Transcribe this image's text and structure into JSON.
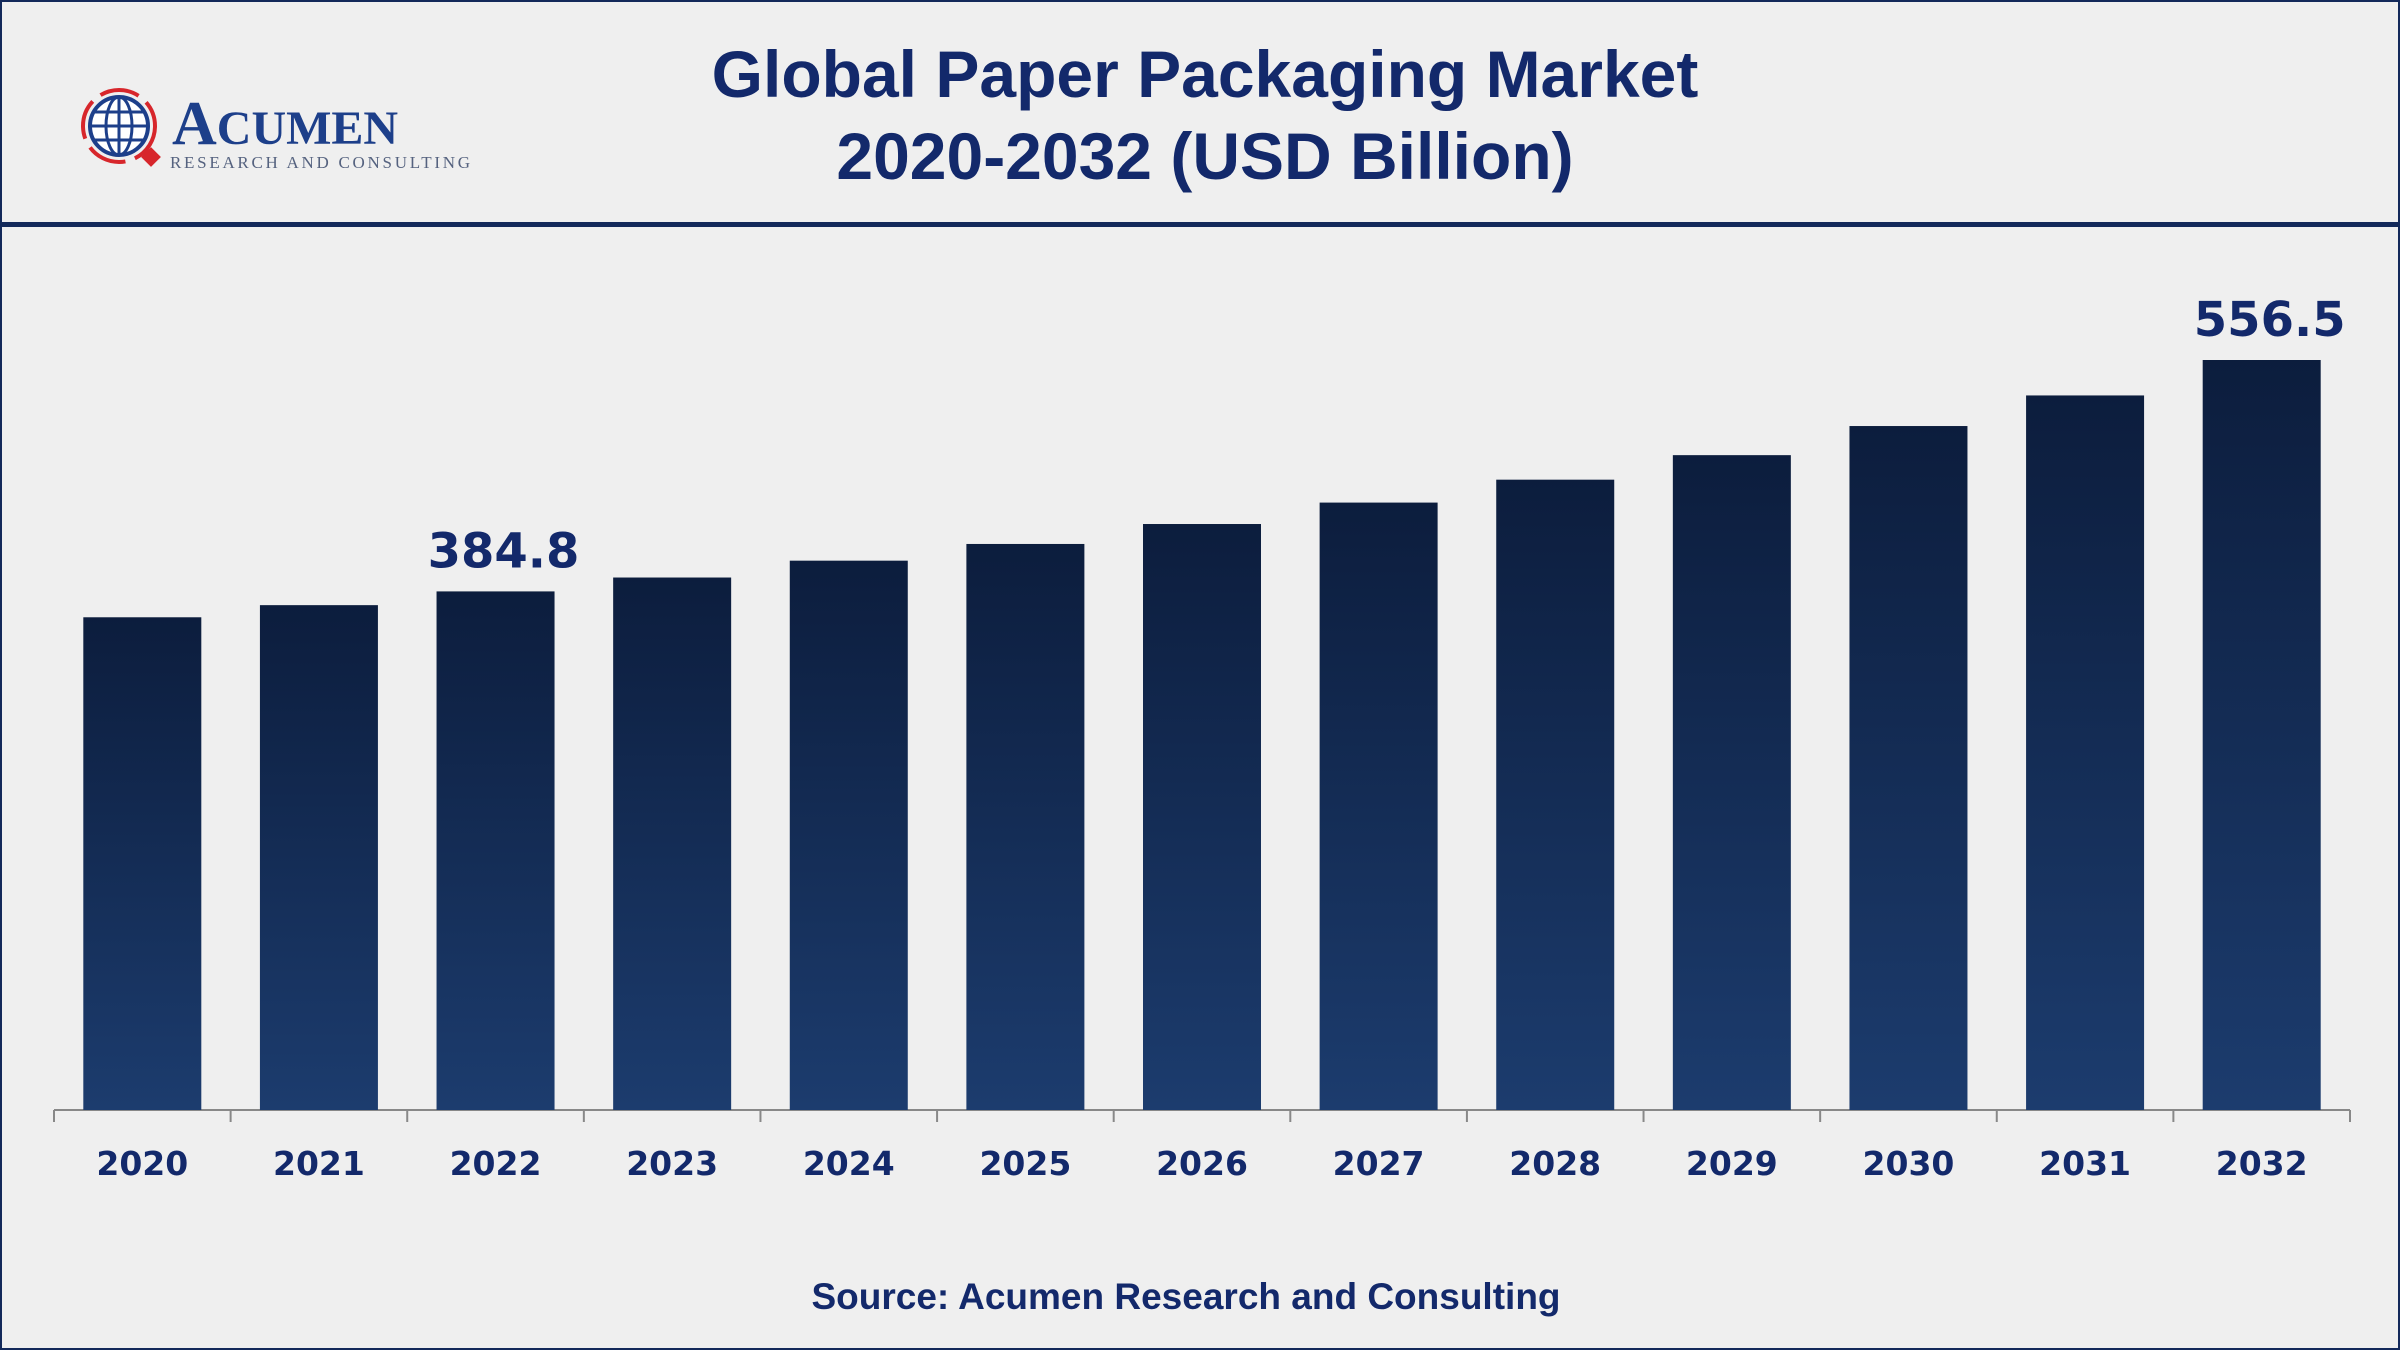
{
  "title_line1": "Global Paper Packaging Market",
  "title_line2": "2020-2032 (USD Billion)",
  "logo": {
    "name": "ACUMEN",
    "tagline": "RESEARCH AND CONSULTING"
  },
  "source": "Source: Acumen Research and Consulting",
  "colors": {
    "bar_top": "#0c1d3d",
    "bar_bottom": "#1c3c6e",
    "text": "#13296b",
    "accent": "#d7262b"
  },
  "chart_data": {
    "type": "bar",
    "title": "Global Paper Packaging Market 2020-2032 (USD Billion)",
    "categories": [
      "2020",
      "2021",
      "2022",
      "2023",
      "2024",
      "2025",
      "2026",
      "2027",
      "2028",
      "2029",
      "2030",
      "2031",
      "2032"
    ],
    "values": [
      365.6,
      374.6,
      384.8,
      395.1,
      407.6,
      420.0,
      434.8,
      450.7,
      467.7,
      485.9,
      507.5,
      530.2,
      556.5
    ],
    "labeled": {
      "2022": "384.8",
      "2032": "556.5"
    },
    "xlabel": "",
    "ylabel": "USD Billion",
    "ylim": [
      0,
      600
    ],
    "grid": false
  }
}
